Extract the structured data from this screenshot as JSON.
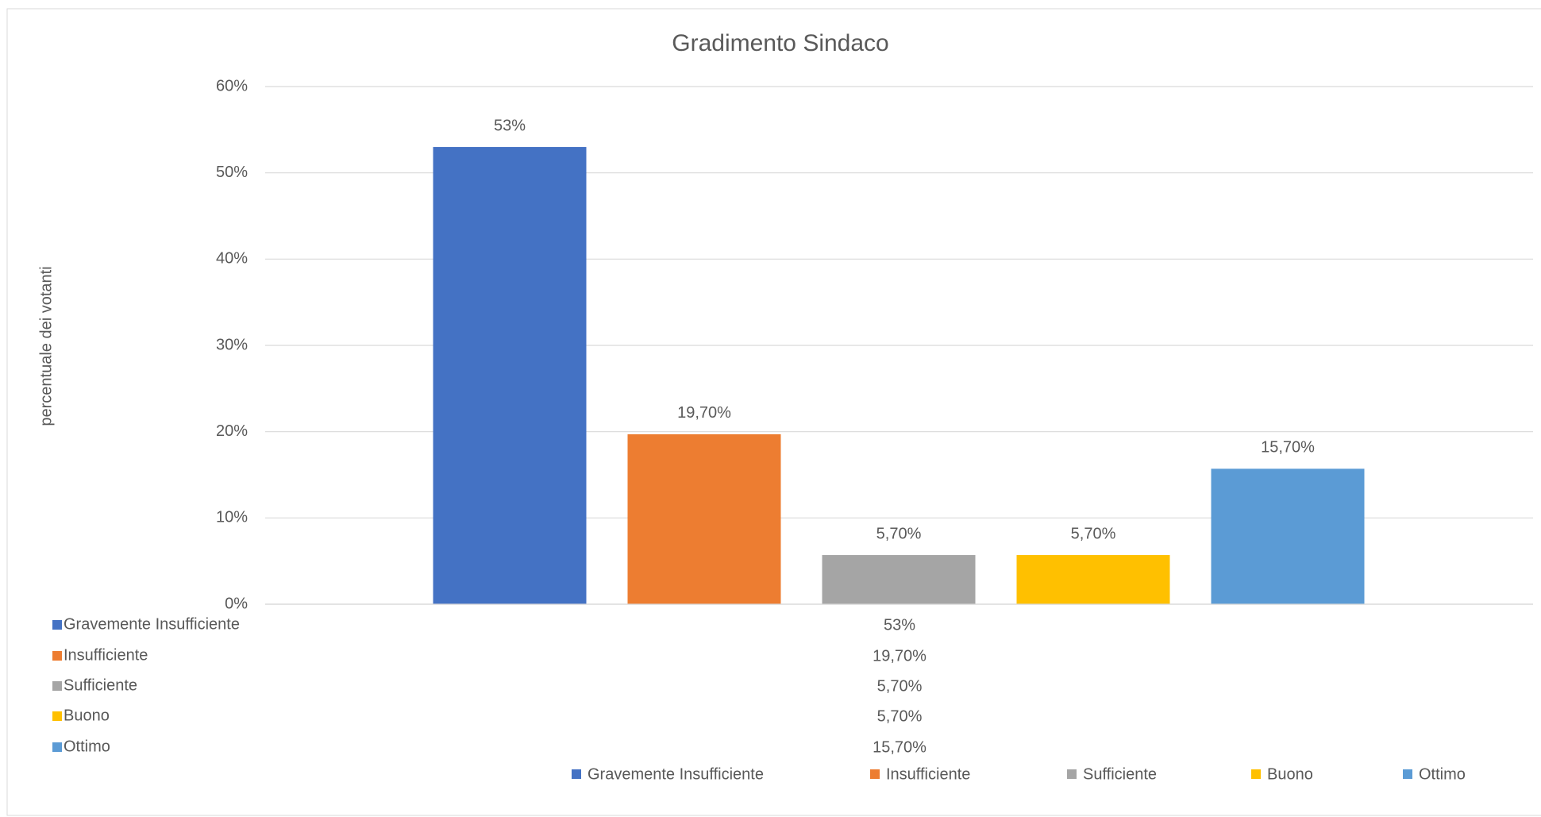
{
  "chart_data": {
    "type": "bar",
    "title": "Gradimento Sindaco",
    "ylabel": "percentuale dei votanti",
    "ylim": [
      0,
      60
    ],
    "yticks": [
      {
        "value": 0,
        "label": "0%"
      },
      {
        "value": 10,
        "label": "10%"
      },
      {
        "value": 20,
        "label": "20%"
      },
      {
        "value": 30,
        "label": "30%"
      },
      {
        "value": 40,
        "label": "40%"
      },
      {
        "value": 50,
        "label": "50%"
      },
      {
        "value": 60,
        "label": "60%"
      }
    ],
    "grid": true,
    "legend": "bottom",
    "series": [
      {
        "name": "Gravemente Insufficiente",
        "color": "#4472c4",
        "values": [
          53
        ],
        "value_labels": [
          "53%"
        ]
      },
      {
        "name": "Insufficiente",
        "color": "#ed7d31",
        "values": [
          19.7
        ],
        "value_labels": [
          "19,70%"
        ]
      },
      {
        "name": "Sufficiente",
        "color": "#a5a5a5",
        "values": [
          5.7
        ],
        "value_labels": [
          "5,70%"
        ]
      },
      {
        "name": "Buono",
        "color": "#ffc000",
        "values": [
          5.7
        ],
        "value_labels": [
          "5,70%"
        ]
      },
      {
        "name": "Ottimo",
        "color": "#5b9bd5",
        "values": [
          15.7
        ],
        "value_labels": [
          "15,70%"
        ]
      }
    ]
  }
}
